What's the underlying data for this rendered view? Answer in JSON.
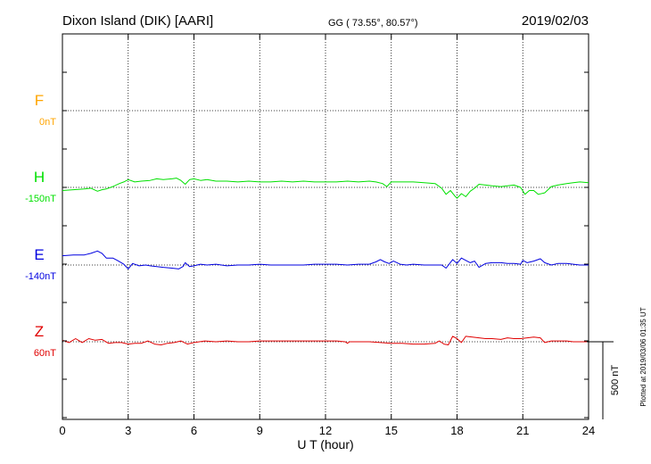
{
  "header": {
    "station": "Dixon Island (DIK)  [AARI]",
    "coords": "GG ( 73.55°,  80.57°)",
    "date": "2019/02/03"
  },
  "plotted_note": "Plotted at 2019/03/06 01:35 UT",
  "scale_label": "500 nT",
  "chart_data": {
    "type": "line",
    "xlabel": "U T (hour)",
    "xlim": [
      0,
      24
    ],
    "x_ticks": [
      0,
      3,
      6,
      9,
      12,
      15,
      18,
      21,
      24
    ],
    "x_tick_labels": [
      "0",
      "3",
      "6",
      "9",
      "12",
      "15",
      "18",
      "21",
      "24"
    ],
    "grid": true,
    "series": [
      {
        "name": "F",
        "baseline_label": "0nT",
        "color": "#ffa500",
        "x": [],
        "values": []
      },
      {
        "name": "H",
        "baseline_label": "-150nT",
        "color": "#00e000",
        "x": [
          0,
          0.5,
          1,
          1.3,
          1.6,
          1.8,
          2,
          2.3,
          2.6,
          2.8,
          3,
          3.3,
          3.6,
          4,
          4.3,
          4.6,
          5,
          5.2,
          5.4,
          5.6,
          5.8,
          6,
          6.3,
          6.6,
          7,
          7.5,
          8,
          8.5,
          9,
          9.5,
          10,
          10.5,
          11,
          11.5,
          12,
          12.5,
          13,
          13.5,
          14,
          14.3,
          14.6,
          14.8,
          15,
          15.5,
          16,
          16.5,
          17,
          17.3,
          17.5,
          17.7,
          17.9,
          18,
          18.2,
          18.4,
          18.6,
          18.8,
          19,
          19.3,
          19.6,
          20,
          20.3,
          20.6,
          20.9,
          21.1,
          21.3,
          21.5,
          21.7,
          22,
          22.3,
          22.6,
          23,
          23.3,
          23.6,
          24
        ],
        "values": [
          -20,
          -15,
          -10,
          -5,
          -25,
          -15,
          -10,
          5,
          25,
          35,
          50,
          35,
          40,
          45,
          55,
          50,
          55,
          60,
          45,
          20,
          50,
          55,
          45,
          50,
          40,
          40,
          35,
          40,
          35,
          35,
          40,
          35,
          40,
          35,
          35,
          35,
          40,
          35,
          40,
          35,
          25,
          5,
          35,
          35,
          35,
          30,
          25,
          -5,
          -45,
          -20,
          -55,
          -70,
          -40,
          -60,
          -25,
          -5,
          20,
          15,
          10,
          5,
          10,
          15,
          0,
          -45,
          -20,
          -20,
          -45,
          -35,
          5,
          15,
          25,
          30,
          35,
          30
        ]
      },
      {
        "name": "E",
        "baseline_label": "-140nT",
        "color": "#0000e0",
        "x": [
          0,
          0.5,
          1,
          1.3,
          1.6,
          1.8,
          2,
          2.3,
          2.5,
          2.8,
          3,
          3.2,
          3.5,
          3.8,
          4,
          4.3,
          4.6,
          5,
          5.3,
          5.5,
          5.6,
          5.8,
          6,
          6.3,
          6.6,
          7,
          7.5,
          8,
          8.5,
          9,
          9.5,
          10,
          10.5,
          11,
          11.5,
          12,
          12.5,
          13,
          13.5,
          14,
          14.3,
          14.5,
          14.7,
          14.9,
          15.1,
          15.4,
          15.7,
          16,
          16.5,
          17,
          17.3,
          17.5,
          17.8,
          18,
          18.2,
          18.4,
          18.6,
          18.8,
          19,
          19.3,
          19.6,
          20,
          20.3,
          20.6,
          20.9,
          21,
          21.2,
          21.5,
          21.8,
          22,
          22.3,
          22.6,
          23,
          23.3,
          23.6,
          24
        ],
        "values": [
          60,
          65,
          65,
          75,
          90,
          75,
          45,
          45,
          30,
          5,
          -25,
          10,
          -5,
          0,
          -5,
          -10,
          -15,
          -20,
          -25,
          -10,
          15,
          -10,
          -5,
          5,
          0,
          5,
          -5,
          0,
          0,
          5,
          0,
          0,
          0,
          0,
          5,
          5,
          5,
          0,
          5,
          5,
          20,
          35,
          20,
          10,
          25,
          5,
          0,
          5,
          0,
          0,
          0,
          -20,
          35,
          10,
          45,
          30,
          15,
          25,
          -15,
          10,
          15,
          15,
          10,
          10,
          5,
          30,
          15,
          25,
          40,
          15,
          0,
          10,
          10,
          5,
          0,
          0
        ]
      },
      {
        "name": "Z",
        "baseline_label": "60nT",
        "color": "#e00000",
        "x": [
          0,
          0.3,
          0.6,
          0.9,
          1.2,
          1.5,
          1.8,
          2.1,
          2.4,
          2.7,
          3,
          3.3,
          3.6,
          3.9,
          4.2,
          4.5,
          4.8,
          5.1,
          5.4,
          5.7,
          6,
          6.5,
          7,
          7.5,
          8,
          8.5,
          9,
          9.5,
          10,
          10.5,
          11,
          11.5,
          12,
          12.5,
          12.9,
          13,
          13.1,
          13.5,
          14,
          14.5,
          15,
          15.5,
          16,
          16.5,
          17,
          17.2,
          17.4,
          17.6,
          17.8,
          18,
          18.2,
          18.4,
          18.7,
          19,
          19.3,
          19.6,
          20,
          20.3,
          20.6,
          20.9,
          21.2,
          21.5,
          21.8,
          22,
          22.3,
          22.6,
          23,
          23.3,
          23.6,
          24
        ],
        "values": [
          10,
          -5,
          20,
          -5,
          20,
          10,
          15,
          -10,
          -5,
          -5,
          -15,
          -10,
          -10,
          5,
          -15,
          -20,
          -10,
          -5,
          5,
          -15,
          -5,
          5,
          0,
          5,
          0,
          0,
          5,
          5,
          5,
          5,
          5,
          5,
          5,
          5,
          0,
          -10,
          0,
          0,
          0,
          -5,
          -10,
          -10,
          -15,
          -15,
          -10,
          5,
          -15,
          -20,
          35,
          20,
          -5,
          35,
          30,
          25,
          20,
          20,
          15,
          25,
          20,
          20,
          25,
          30,
          25,
          -5,
          5,
          5,
          5,
          0,
          0,
          0
        ]
      }
    ]
  }
}
